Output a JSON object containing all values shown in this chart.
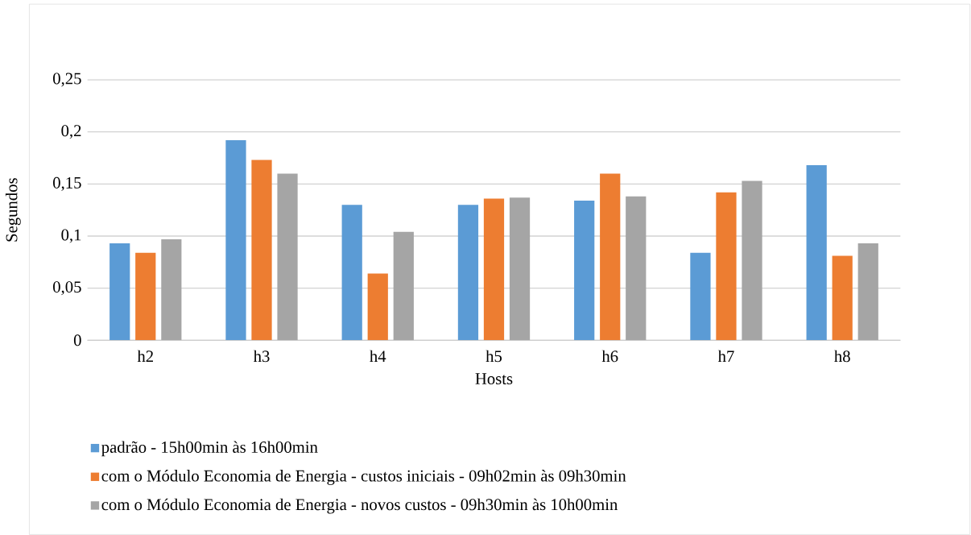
{
  "chart_data": {
    "type": "bar",
    "xlabel": "Hosts",
    "ylabel": "Segundos",
    "categories": [
      "h2",
      "h3",
      "h4",
      "h5",
      "h6",
      "h7",
      "h8"
    ],
    "series": [
      {
        "name": "padrão - 15h00min às 16h00min",
        "color": "#5b9bd5",
        "values": [
          0.093,
          0.192,
          0.13,
          0.13,
          0.134,
          0.084,
          0.168
        ]
      },
      {
        "name": "com o Módulo Economia de Energia - custos iniciais - 09h02min às 09h30min",
        "color": "#ed7d31",
        "values": [
          0.084,
          0.173,
          0.064,
          0.136,
          0.16,
          0.142,
          0.081
        ]
      },
      {
        "name": "com o Módulo Economia de Energia - novos custos - 09h30min às 10h00min",
        "color": "#a5a5a5",
        "values": [
          0.097,
          0.16,
          0.104,
          0.137,
          0.138,
          0.153,
          0.093
        ]
      }
    ],
    "ylim": [
      0,
      0.25
    ],
    "yticks": [
      0,
      {
        "value": 0.05,
        "label": "0,05"
      },
      {
        "value": 0.1,
        "label": "0,1"
      },
      {
        "value": 0.15,
        "label": "0,15"
      },
      {
        "value": 0.2,
        "label": "0,2"
      },
      {
        "value": 0.25,
        "label": "0,25"
      }
    ],
    "grid": "y",
    "legend": "bottom"
  }
}
